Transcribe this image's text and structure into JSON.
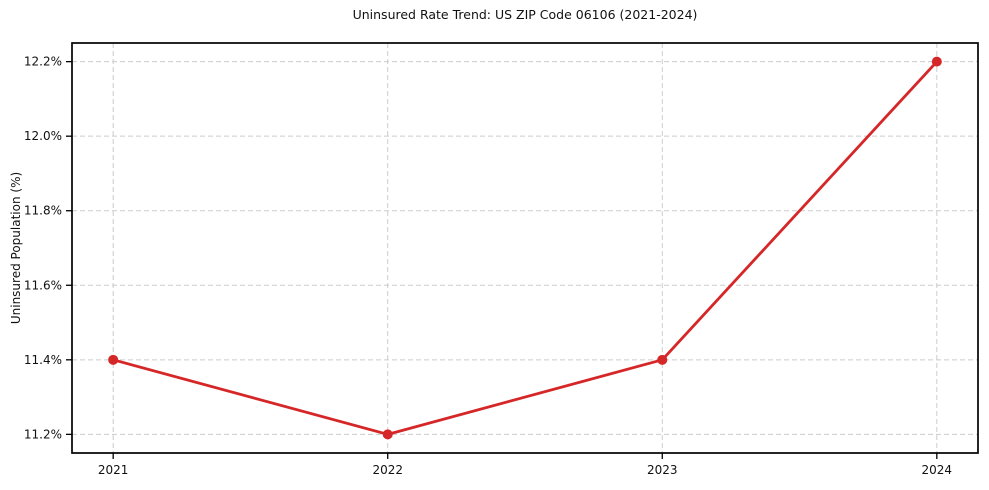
{
  "chart_data": {
    "type": "line",
    "title": "Uninsured Rate Trend: US ZIP Code 06106 (2021-2024)",
    "xlabel": "",
    "ylabel": "Uninsured Population (%)",
    "x": [
      2021,
      2022,
      2023,
      2024
    ],
    "x_tick_labels": [
      "2021",
      "2022",
      "2023",
      "2024"
    ],
    "series": [
      {
        "name": "Uninsured rate",
        "values": [
          11.4,
          11.2,
          11.4,
          12.2
        ]
      }
    ],
    "y_ticks": [
      11.2,
      11.4,
      11.6,
      11.8,
      12.0,
      12.2
    ],
    "y_tick_labels": [
      "11.2%",
      "11.4%",
      "11.6%",
      "11.8%",
      "12.0%",
      "12.2%"
    ],
    "xlim": [
      2020.85,
      2024.15
    ],
    "ylim": [
      11.15,
      12.25
    ],
    "grid": true,
    "grid_style": "dashed",
    "legend": false,
    "colors": {
      "line": "#d62728",
      "marker": "#d62728",
      "grid": "#cccccc",
      "spine": "#000000",
      "text": "#111111"
    }
  }
}
